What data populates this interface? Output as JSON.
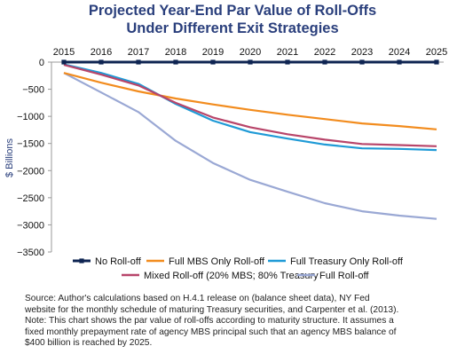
{
  "chart_data": {
    "type": "line",
    "title_lines": [
      "Projected Year-End Par Value of Roll-Offs",
      "Under Different Exit Strategies"
    ],
    "ylabel": "$ Billions",
    "x": [
      2015,
      2016,
      2017,
      2018,
      2019,
      2020,
      2021,
      2022,
      2023,
      2024,
      2025
    ],
    "x_tick_labels": [
      "2015",
      "2016",
      "2017",
      "2018",
      "2019",
      "2020",
      "2021",
      "2022",
      "2023",
      "2024",
      "2025"
    ],
    "ylim": [
      -3500,
      0
    ],
    "y_ticks": [
      0,
      -500,
      -1000,
      -1500,
      -2000,
      -2500,
      -3000,
      -3500
    ],
    "y_tick_labels": [
      "0",
      "−500",
      "−1000",
      "−1500",
      "−2000",
      "−2500",
      "−3000",
      "−3500"
    ],
    "x_axis_position": "top",
    "grid": false,
    "legend_position": "bottom",
    "series": [
      {
        "name": "No Roll-off",
        "color": "#0e2452",
        "marker": "square",
        "x": [
          2015,
          2016,
          2017,
          2018,
          2019,
          2020,
          2021,
          2022,
          2023,
          2024,
          2025
        ],
        "values": [
          0,
          0,
          0,
          0,
          0,
          0,
          0,
          0,
          0,
          0,
          0
        ]
      },
      {
        "name": "Full MBS Only Roll-off",
        "color": "#f28c1e",
        "x": [
          2015,
          2016,
          2017,
          2018,
          2019,
          2020,
          2021,
          2022,
          2023,
          2024,
          2025
        ],
        "values": [
          -200,
          -380,
          -540,
          -670,
          -780,
          -880,
          -970,
          -1050,
          -1130,
          -1180,
          -1240
        ]
      },
      {
        "name": "Full Treasury Only Roll-off",
        "color": "#1f9ad6",
        "x": [
          2015,
          2016,
          2017,
          2018,
          2019,
          2020,
          2021,
          2022,
          2023,
          2024,
          2025
        ],
        "values": [
          -40,
          -200,
          -400,
          -770,
          -1080,
          -1290,
          -1410,
          -1520,
          -1590,
          -1600,
          -1620
        ]
      },
      {
        "name": "Mixed Roll-off (20% MBS; 80% Treasury",
        "color": "#b8456a",
        "x": [
          2015,
          2016,
          2017,
          2018,
          2019,
          2020,
          2021,
          2022,
          2023,
          2024,
          2025
        ],
        "values": [
          -50,
          -230,
          -430,
          -750,
          -1020,
          -1200,
          -1330,
          -1430,
          -1510,
          -1530,
          -1550
        ]
      },
      {
        "name": "Full Roll-off",
        "color": "#9aa8d4",
        "x": [
          2015,
          2016,
          2017,
          2018,
          2019,
          2020,
          2021,
          2022,
          2023,
          2024,
          2025
        ],
        "values": [
          -200,
          -560,
          -920,
          -1450,
          -1860,
          -2170,
          -2390,
          -2600,
          -2750,
          -2830,
          -2890
        ]
      }
    ],
    "note_lines": [
      "Source:  Author's calculations based on H.4.1 release on (balance sheet data), NY Fed",
      "website for the monthly schedule of maturing Treasury securities, and Carpenter et al. (2013).",
      "Note: This chart shows the par value of roll-offs according to maturity structure. It assumes a",
      "fixed monthly prepayment rate of agency MBS principal such that an agency MBS balance of",
      "$400 billion is reached by 2025."
    ]
  }
}
